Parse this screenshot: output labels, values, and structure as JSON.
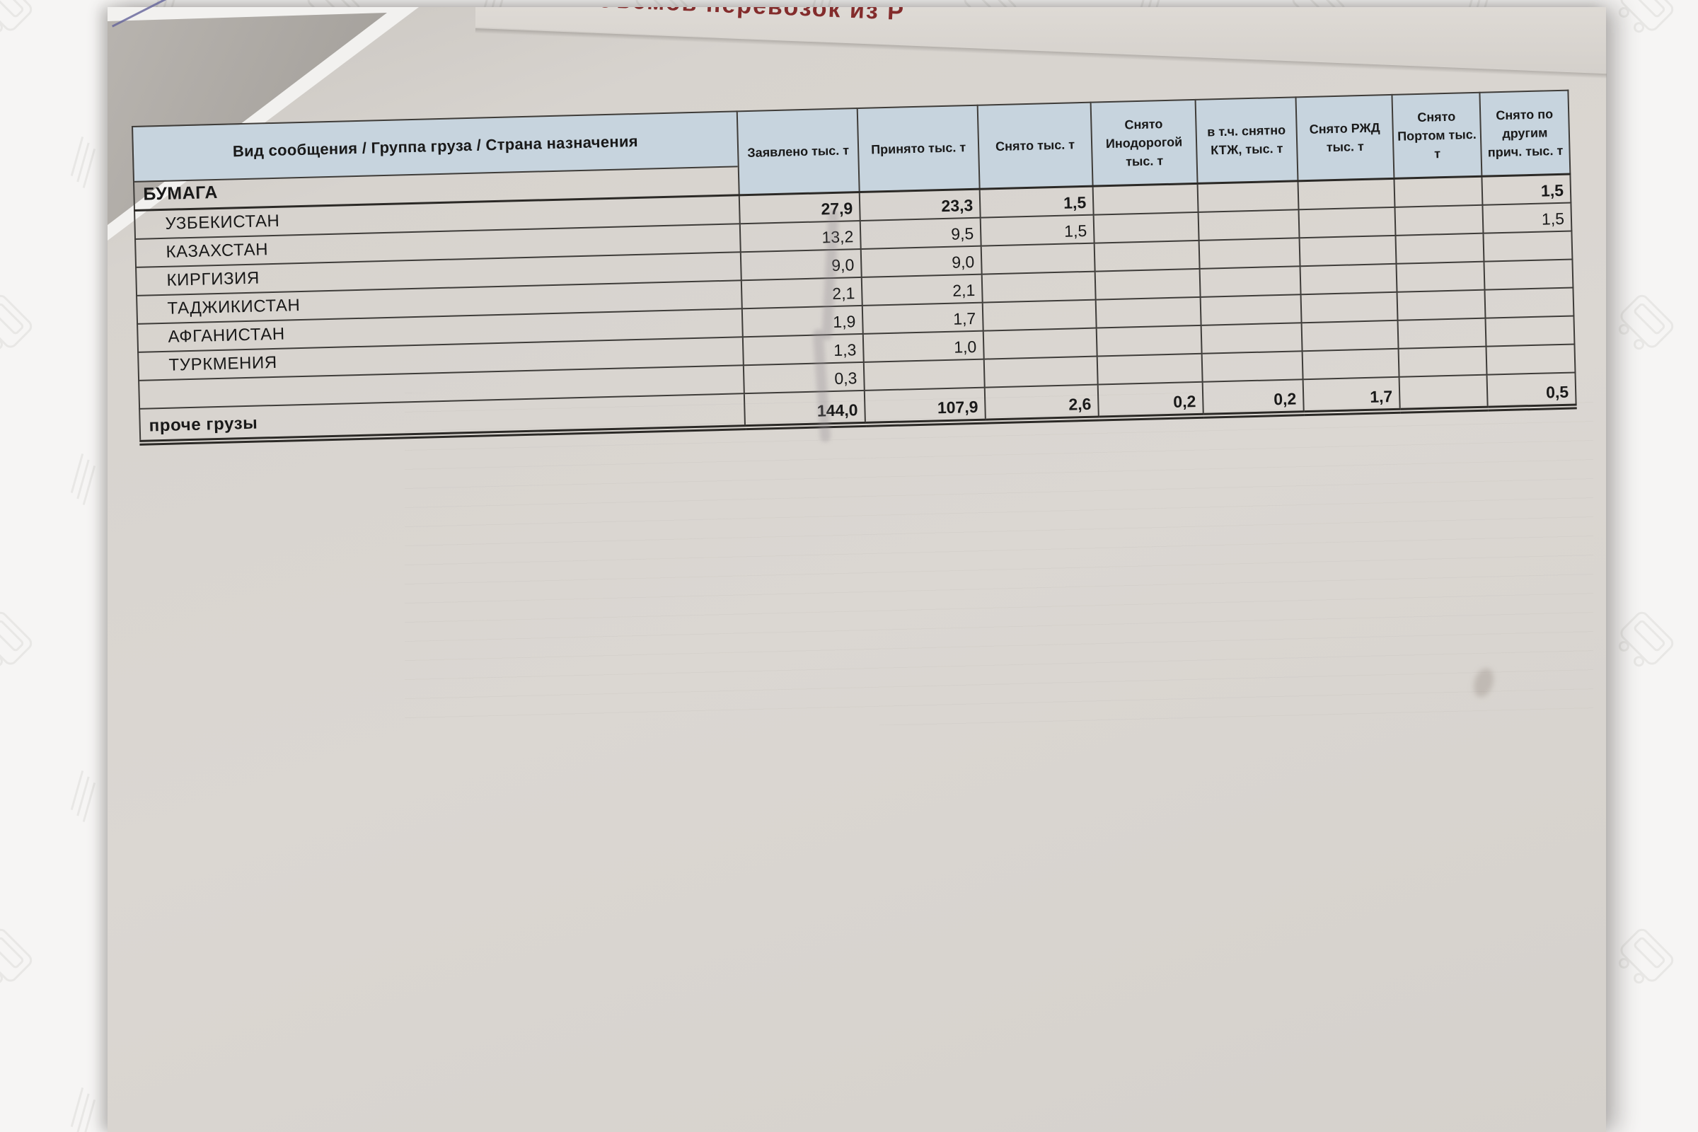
{
  "overlay": {
    "title_fragment": "объемов перевозок из Р"
  },
  "table": {
    "title_col_header": "Вид сообщения / Группа груза / Страна назначения",
    "value_col_headers": [
      "Заявлено тыс. т",
      "Принято тыс. т",
      "Снято тыс. т",
      "Снято Инодорогой тыс. т",
      "в т.ч. снятно КТЖ, тыс. т",
      "Снято РЖД тыс. т",
      "Снято Портом тыс. т",
      "Снято по другим прич. тыс. т"
    ],
    "group_header": "БУМАГА",
    "rows": [
      {
        "label": "УЗБЕКИСТАН",
        "label_bold": false,
        "values_bold": true,
        "total": false,
        "values": [
          "27,9",
          "23,3",
          "1,5",
          "",
          "",
          "",
          "",
          "1,5"
        ]
      },
      {
        "label": "КАЗАХСТАН",
        "label_bold": false,
        "values_bold": false,
        "total": false,
        "values": [
          "13,2",
          "9,5",
          "1,5",
          "",
          "",
          "",
          "",
          "1,5"
        ]
      },
      {
        "label": "КИРГИЗИЯ",
        "label_bold": false,
        "values_bold": false,
        "total": false,
        "values": [
          "9,0",
          "9,0",
          "",
          "",
          "",
          "",
          "",
          ""
        ]
      },
      {
        "label": "ТАДЖИКИСТАН",
        "label_bold": false,
        "values_bold": false,
        "total": false,
        "values": [
          "2,1",
          "2,1",
          "",
          "",
          "",
          "",
          "",
          ""
        ]
      },
      {
        "label": "АФГАНИСТАН",
        "label_bold": false,
        "values_bold": false,
        "total": false,
        "values": [
          "1,9",
          "1,7",
          "",
          "",
          "",
          "",
          "",
          ""
        ]
      },
      {
        "label": "ТУРКМЕНИЯ",
        "label_bold": false,
        "values_bold": false,
        "total": false,
        "values": [
          "1,3",
          "1,0",
          "",
          "",
          "",
          "",
          "",
          ""
        ]
      },
      {
        "label": "",
        "label_bold": false,
        "values_bold": false,
        "total": false,
        "values": [
          "0,3",
          "",
          "",
          "",
          "",
          "",
          "",
          ""
        ]
      },
      {
        "label": "проче грузы",
        "label_bold": true,
        "values_bold": true,
        "total": true,
        "values": [
          "144,0",
          "107,9",
          "2,6",
          "0,2",
          "0,2",
          "1,7",
          "",
          "0,5"
        ]
      }
    ]
  },
  "colors": {
    "header_bg": "#c7d4de",
    "paper": "#d7d3ce",
    "table_border": "#3e3c39",
    "text": "#191919",
    "overlay_red": "#7c1e1e"
  }
}
